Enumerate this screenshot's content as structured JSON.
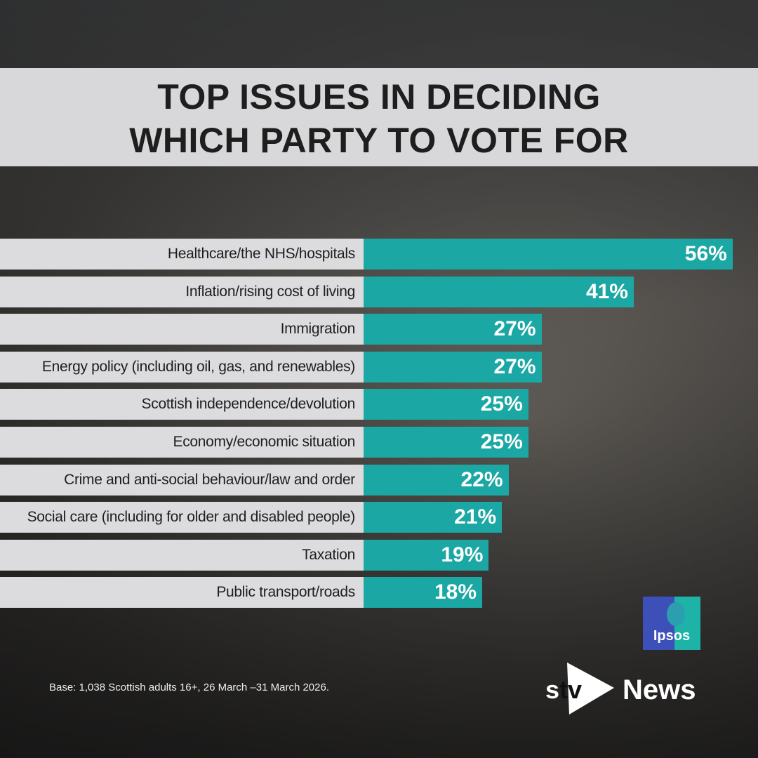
{
  "title_lines": [
    "TOP ISSUES IN DECIDING",
    "WHICH PARTY TO VOTE FOR"
  ],
  "chart_data": {
    "type": "bar",
    "orientation": "horizontal",
    "title": "TOP ISSUES IN DECIDING WHICH PARTY TO VOTE FOR",
    "categories": [
      "Healthcare/the NHS/hospitals",
      "Inflation/rising cost of living",
      "Immigration",
      "Energy policy (including oil, gas, and renewables)",
      "Scottish independence/devolution",
      "Economy/economic situation",
      "Crime and anti-social behaviour/law and order",
      "Social care (including for older and disabled people)",
      "Taxation",
      "Public transport/roads"
    ],
    "values": [
      56,
      41,
      27,
      27,
      25,
      25,
      22,
      21,
      19,
      18
    ],
    "value_labels": [
      "56%",
      "41%",
      "27%",
      "27%",
      "25%",
      "25%",
      "22%",
      "21%",
      "19%",
      "18%"
    ],
    "bar_color": "#1ba7a3",
    "xlim": [
      0,
      100
    ]
  },
  "footnote": "Base: 1,038 Scottish adults 16+, 26 March –31 March 2026.",
  "logos": {
    "ipsos": "Ipsos",
    "stv": "stv",
    "news": "News"
  }
}
